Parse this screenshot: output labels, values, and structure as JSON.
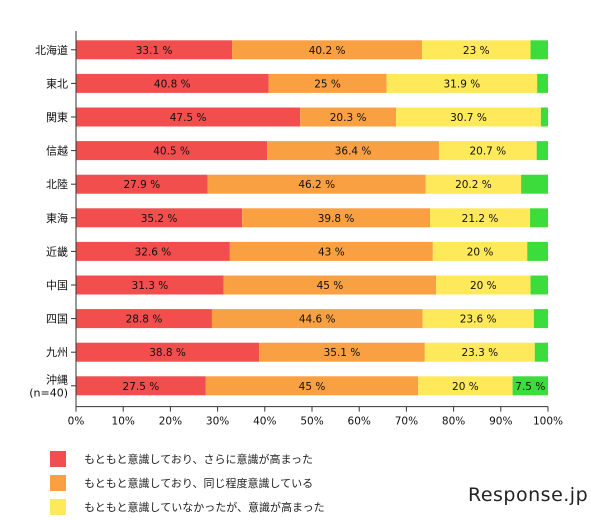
{
  "chart_data": {
    "type": "bar",
    "orientation": "horizontal",
    "stacked": true,
    "categories": [
      "北海道",
      "東北",
      "関東",
      "信越",
      "北陸",
      "東海",
      "近畿",
      "中国",
      "四国",
      "九州",
      "沖縄\n(n=40)"
    ],
    "series": [
      {
        "name": "もともと意識しており、さらに意識が高まった",
        "color": "#f24e4e",
        "values": [
          33.1,
          40.8,
          47.5,
          40.5,
          27.9,
          35.2,
          32.6,
          31.3,
          28.8,
          38.8,
          27.5
        ],
        "labels": [
          "33.1 %",
          "40.8 %",
          "47.5 %",
          "40.5 %",
          "27.9 %",
          "35.2 %",
          "32.6 %",
          "31.3 %",
          "28.8 %",
          "38.8 %",
          "27.5 %"
        ]
      },
      {
        "name": "もともと意識しており、同じ程度意識している",
        "color": "#f9a043",
        "values": [
          40.2,
          25,
          20.3,
          36.4,
          46.2,
          39.8,
          43,
          45,
          44.6,
          35.1,
          45
        ],
        "labels": [
          "40.2 %",
          "25 %",
          "20.3 %",
          "36.4 %",
          "46.2 %",
          "39.8 %",
          "43 %",
          "45 %",
          "44.6 %",
          "35.1 %",
          "45 %"
        ]
      },
      {
        "name": "もともと意識していなかったが、意識が高まった",
        "color": "#fde95a",
        "values": [
          23,
          31.9,
          30.7,
          20.7,
          20.2,
          21.2,
          20,
          20,
          23.6,
          23.3,
          20
        ],
        "labels": [
          "23 %",
          "31.9 %",
          "30.7 %",
          "20.7 %",
          "20.2 %",
          "21.2 %",
          "20 %",
          "20 %",
          "23.6 %",
          "23.3 %",
          "20 %"
        ]
      },
      {
        "color": "#3ddc3d",
        "values": [
          3.7,
          2.3,
          1.5,
          2.4,
          5.7,
          3.8,
          4.4,
          3.7,
          3.0,
          2.8,
          7.5
        ],
        "labels": [
          "",
          "",
          "",
          "",
          "",
          "",
          "",
          "",
          "",
          "",
          "7.5 %"
        ]
      }
    ],
    "xlim": [
      0,
      100
    ],
    "xticks": [
      "0%",
      "10%",
      "20%",
      "30%",
      "40%",
      "50%",
      "60%",
      "70%",
      "80%",
      "90%",
      "100%"
    ],
    "legend": {
      "placement": "bottom-left",
      "entries": [
        "もともと意識しており、さらに意識が高まった",
        "もともと意識しており、同じ程度意識している",
        "もともと意識していなかったが、意識が高まった"
      ]
    },
    "grid": false
  },
  "watermark": "Response.jp"
}
